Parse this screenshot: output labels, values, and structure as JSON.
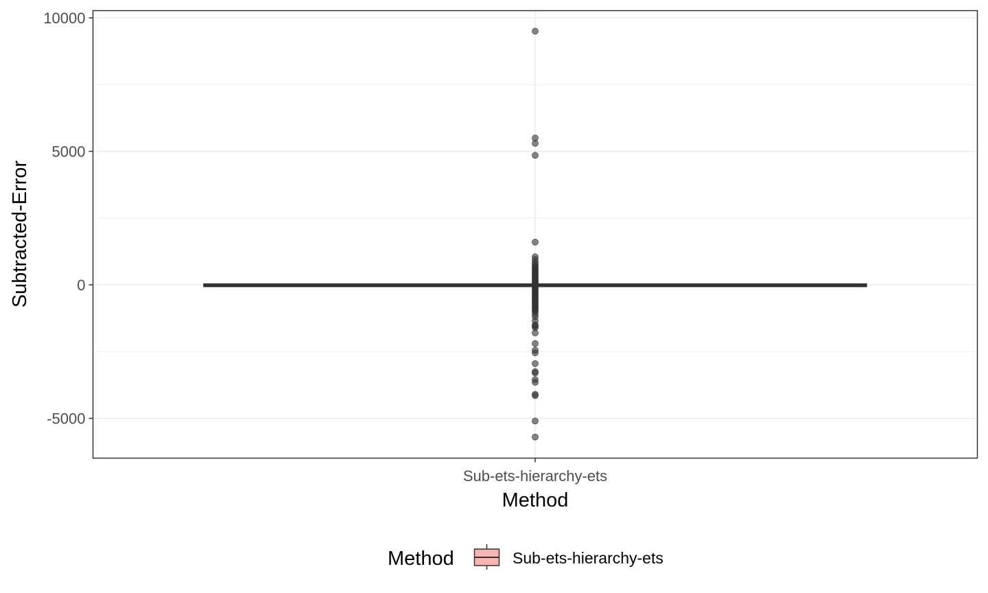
{
  "chart_data": {
    "type": "boxplot",
    "title": "",
    "xlabel": "Method",
    "ylabel": "Subtracted-Error",
    "categories": [
      "Sub-ets-hierarchy-ets"
    ],
    "ylim": [
      -6500,
      10000
    ],
    "yticks": [
      -5000,
      0,
      5000,
      10000
    ],
    "grid": true,
    "legend": {
      "title": "Method",
      "placement": "bottom",
      "entries": [
        {
          "label": "Sub-ets-hierarchy-ets",
          "fill": "#f8b4b0"
        }
      ]
    },
    "series": [
      {
        "category": "Sub-ets-hierarchy-ets",
        "median": 0,
        "q1": -10,
        "q3": 10,
        "whisker_low": -30,
        "whisker_high": 30,
        "outliers_high": [
          9500,
          5500,
          5300,
          4850,
          1600,
          1050,
          950,
          850,
          780,
          700,
          650,
          600,
          550,
          500,
          450,
          400,
          350,
          300,
          250,
          200,
          150,
          100,
          60
        ],
        "outliers_low": [
          -60,
          -100,
          -150,
          -200,
          -250,
          -300,
          -350,
          -400,
          -450,
          -500,
          -550,
          -600,
          -650,
          -700,
          -750,
          -800,
          -850,
          -900,
          -950,
          -1000,
          -1100,
          -1200,
          -1350,
          -1500,
          -1550,
          -1600,
          -1800,
          -2200,
          -2450,
          -2550,
          -2950,
          -3250,
          -3300,
          -3550,
          -3650,
          -4100,
          -4150,
          -5100,
          -5700
        ]
      }
    ]
  },
  "colors": {
    "box_line": "#333333",
    "outlier": "#333333",
    "outlier_opacity": 0.6,
    "grid": "#ebebeb",
    "panel_border": "#333333",
    "legend_fill": "#f8b4b0"
  }
}
